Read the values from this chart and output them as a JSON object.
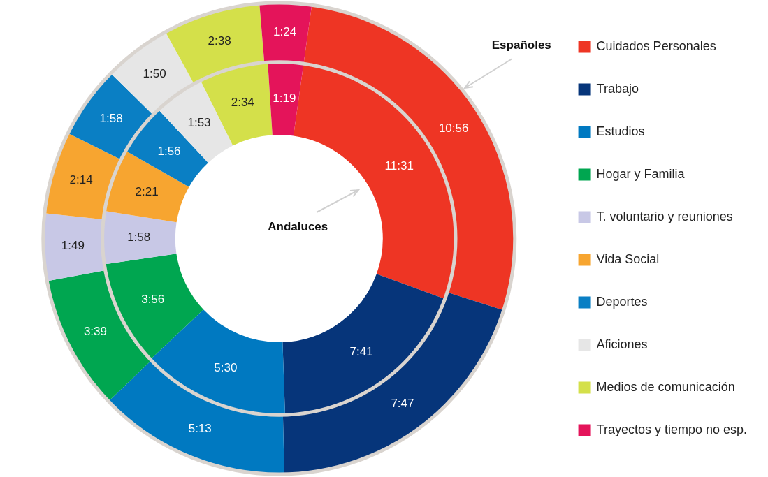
{
  "chart_data": {
    "type": "donut",
    "categories": [
      "Cuidados Personales",
      "Trabajo",
      "Estudios",
      "Hogar y Familia",
      "T. voluntario y reuniones",
      "Vida Social",
      "Deportes",
      "Aficiones",
      "Medios de comunicación",
      "Trayectos y tiempo no esp."
    ],
    "colors": [
      "#ee3524",
      "#06357a",
      "#0079c1",
      "#00a650",
      "#c8c8e6",
      "#f7a530",
      "#0a7fc4",
      "#e6e6e6",
      "#d4e04a",
      "#e4145a"
    ],
    "series": [
      {
        "name": "Españoles",
        "values": [
          656,
          467,
          313,
          219,
          109,
          134,
          118,
          110,
          158,
          84
        ],
        "value_labels": [
          "10:56",
          "7:47",
          "5:13",
          "3:39",
          "1:49",
          "2:14",
          "1:58",
          "1:50",
          "2:38",
          "1:24"
        ]
      },
      {
        "name": "Andaluces",
        "values": [
          691,
          461,
          330,
          236,
          118,
          141,
          116,
          113,
          154,
          79
        ],
        "value_labels": [
          "11:31",
          "7:41",
          "5:30",
          "3:56",
          "1:58",
          "2:21",
          "1:56",
          "1:53",
          "2:34",
          "1:19"
        ]
      }
    ],
    "legend": "right"
  }
}
